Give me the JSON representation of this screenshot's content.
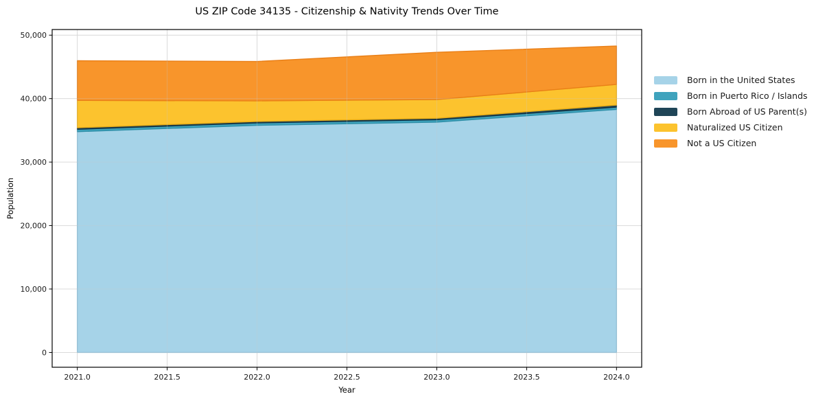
{
  "colors": {
    "background": "#ffffff",
    "grid": "#e4e4e4",
    "grid_overlay": "#c8c8c8",
    "axis": "#000000",
    "text": "#1a1a1a"
  },
  "chart_data": {
    "type": "area",
    "stacked": true,
    "title": "US ZIP Code 34135 - Citizenship & Nativity Trends Over Time",
    "xlabel": "Year",
    "ylabel": "Population",
    "x": [
      2021,
      2022,
      2023,
      2024
    ],
    "series": [
      {
        "name": "Born in the United States",
        "color": "#A6D3E8",
        "edge_color": "#8CC0DB",
        "values": [
          34800,
          35800,
          36300,
          38300
        ]
      },
      {
        "name": "Born in Puerto Rico / Islands",
        "color": "#3FA3BD",
        "edge_color": "#2E8FA8",
        "values": [
          370,
          370,
          370,
          360
        ]
      },
      {
        "name": "Born Abroad of US Parent(s)",
        "color": "#1F4557",
        "edge_color": "#16323F",
        "values": [
          250,
          230,
          230,
          330
        ]
      },
      {
        "name": "Naturalized US Citizen",
        "color": "#FCC32E",
        "edge_color": "#EBAD14",
        "values": [
          4300,
          3250,
          2950,
          3250
        ]
      },
      {
        "name": "Not a US Citizen",
        "color": "#F8952B",
        "edge_color": "#E97F17",
        "values": [
          6250,
          6200,
          7450,
          6050
        ]
      }
    ],
    "xlim": [
      2020.86,
      2024.14
    ],
    "ylim": [
      -2330,
      50890
    ],
    "xticks": {
      "values": [
        2021.0,
        2021.5,
        2022.0,
        2022.5,
        2023.0,
        2023.5,
        2024.0
      ],
      "labels": [
        "2021.0",
        "2021.5",
        "2022.0",
        "2022.5",
        "2023.0",
        "2023.5",
        "2024.0"
      ]
    },
    "yticks": {
      "values": [
        0,
        10000,
        20000,
        30000,
        40000,
        50000
      ],
      "labels": [
        "0",
        "10,000",
        "20,000",
        "30,000",
        "40,000",
        "50,000"
      ]
    },
    "grid": true,
    "legend_position": "right"
  }
}
